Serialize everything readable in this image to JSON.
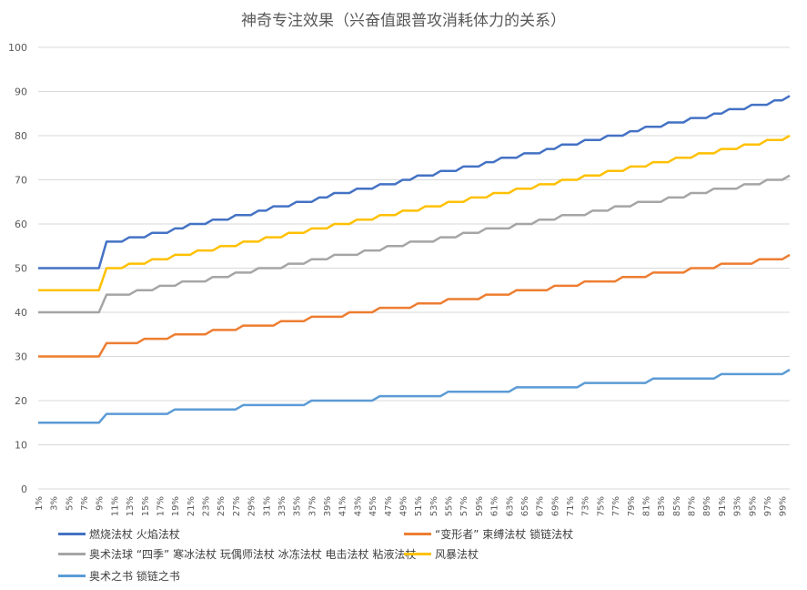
{
  "chart_data": {
    "type": "line",
    "title": "神奇专注效果（兴奋值跟普攻消耗体力的关系）",
    "xlabel": "",
    "ylabel": "",
    "ylim": [
      0,
      100
    ],
    "yticks": [
      0,
      10,
      20,
      30,
      40,
      50,
      60,
      70,
      80,
      90,
      100
    ],
    "grid": true,
    "legend_position": "bottom",
    "x_tick_labels": [
      "1%",
      "3%",
      "5%",
      "7%",
      "9%",
      "11%",
      "13%",
      "15%",
      "17%",
      "19%",
      "21%",
      "23%",
      "25%",
      "27%",
      "29%",
      "31%",
      "33%",
      "35%",
      "37%",
      "39%",
      "41%",
      "43%",
      "45%",
      "47%",
      "49%",
      "51%",
      "53%",
      "55%",
      "57%",
      "59%",
      "61%",
      "63%",
      "65%",
      "67%",
      "69%",
      "71%",
      "73%",
      "75%",
      "77%",
      "79%",
      "81%",
      "83%",
      "85%",
      "87%",
      "89%",
      "91%",
      "93%",
      "95%",
      "97%",
      "99%"
    ],
    "x_range": [
      1,
      100
    ],
    "series": [
      {
        "name": "燃烧法杖 火焰法杖",
        "color": "#4472C4",
        "base": 50,
        "max": 89,
        "points": [
          [
            1,
            50
          ],
          [
            9,
            50
          ],
          [
            10,
            56
          ],
          [
            100,
            89
          ]
        ]
      },
      {
        "name": "“变形者” 束缚法杖 锁链法杖",
        "color": "#ED7D31",
        "base": 30,
        "max": 53,
        "points": [
          [
            1,
            30
          ],
          [
            9,
            30
          ],
          [
            10,
            33
          ],
          [
            100,
            53
          ]
        ]
      },
      {
        "name": "奥术法球 “四季” 寒冰法杖 玩偶师法杖 冰冻法杖 电击法杖 粘液法杖",
        "color": "#A5A5A5",
        "base": 40,
        "max": 71,
        "points": [
          [
            1,
            40
          ],
          [
            9,
            40
          ],
          [
            10,
            44
          ],
          [
            100,
            71
          ]
        ]
      },
      {
        "name": "风暴法杖",
        "color": "#FFC000",
        "base": 45,
        "max": 80,
        "points": [
          [
            1,
            45
          ],
          [
            9,
            45
          ],
          [
            10,
            50
          ],
          [
            100,
            80
          ]
        ]
      },
      {
        "name": "奥术之书 锁链之书",
        "color": "#5B9BD5",
        "base": 15,
        "max": 27,
        "points": [
          [
            1,
            15
          ],
          [
            9,
            15
          ],
          [
            10,
            17
          ],
          [
            100,
            27
          ]
        ]
      }
    ]
  }
}
